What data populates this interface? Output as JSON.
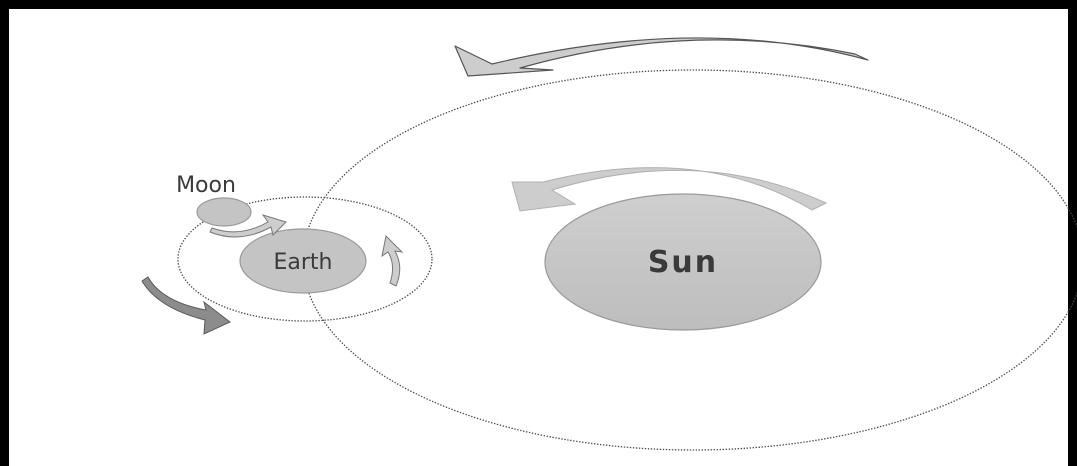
{
  "diagram": {
    "labels": {
      "moon": "Moon",
      "earth": "Earth",
      "sun": "Sun"
    },
    "colors": {
      "body_fill": "#c4c4c4",
      "body_stroke": "#9a9a9a",
      "arrow_light": "#cdcdcd",
      "arrow_dark": "#8c8c8c",
      "orbit": "#4a4a4a",
      "frame": "#000000",
      "background": "#ffffff"
    }
  }
}
